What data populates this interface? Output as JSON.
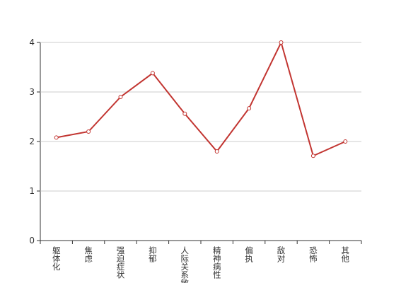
{
  "chart_data": {
    "type": "line",
    "categories": [
      "躯体化",
      "焦虑",
      "强迫症状",
      "抑郁",
      "人际关系敏感",
      "精神病性",
      "偏执",
      "敌对",
      "恐怖",
      "其他"
    ],
    "series": [
      {
        "color": "#c23531",
        "values": [
          2.08,
          2.2,
          2.9,
          3.38,
          2.56,
          1.8,
          2.67,
          4.0,
          1.71,
          2.0
        ]
      }
    ],
    "ylim": [
      0,
      4
    ],
    "yticks": [
      0,
      1,
      2,
      3,
      4
    ],
    "grid": true
  }
}
